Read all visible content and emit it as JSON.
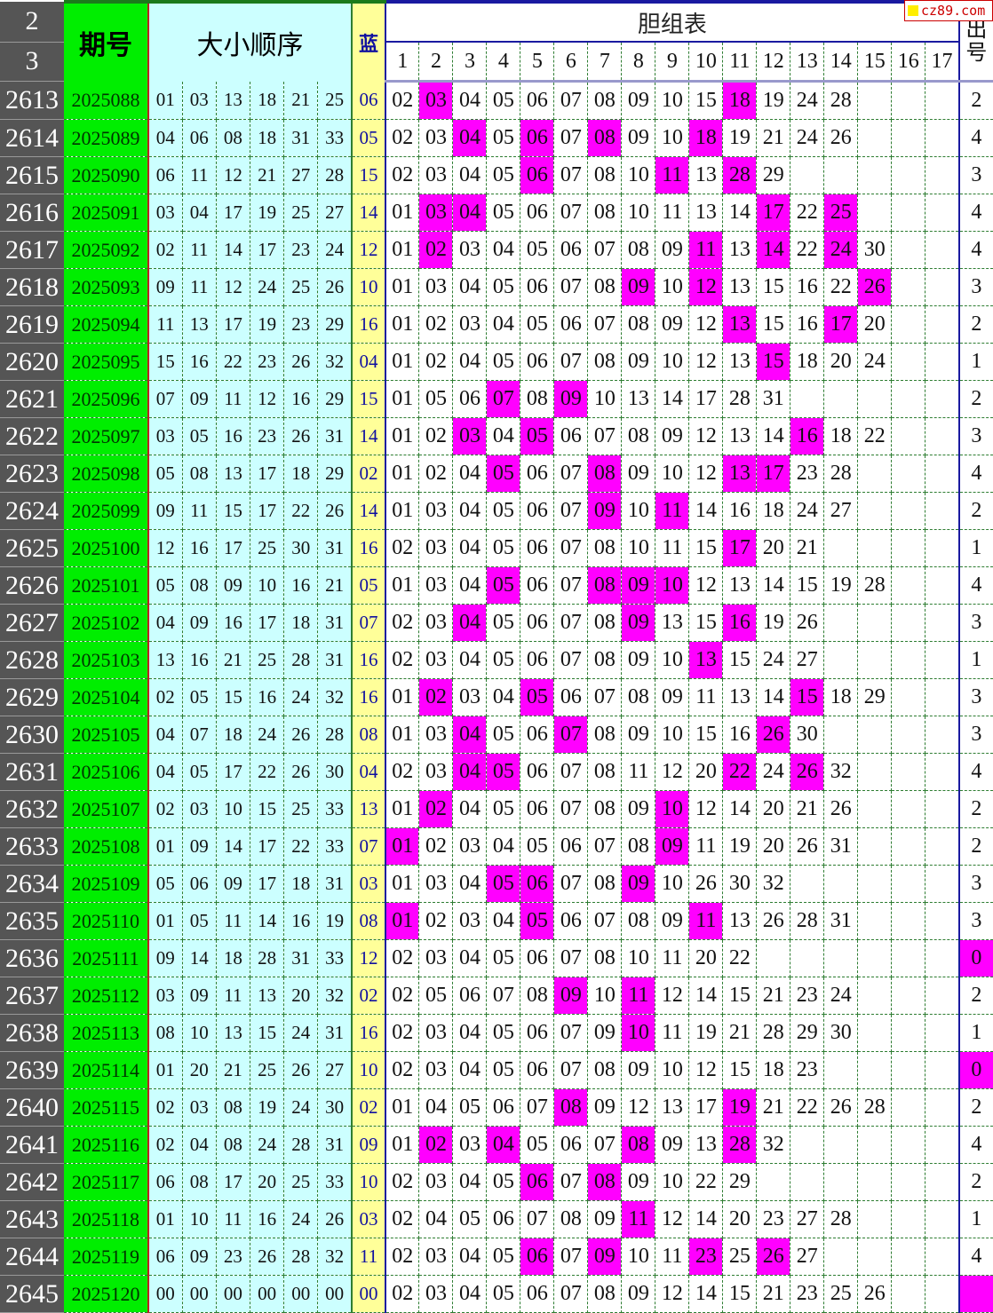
{
  "header": {
    "row_numbers": [
      "2",
      "3"
    ],
    "period_label": "期号",
    "red_label": "大小顺序",
    "blue_label": "蓝",
    "danzu_label": "胆组表",
    "danzu_columns": [
      "1",
      "2",
      "3",
      "4",
      "5",
      "6",
      "7",
      "8",
      "9",
      "10",
      "11",
      "12",
      "13",
      "14",
      "15",
      "16",
      "17"
    ],
    "count_label": "出号"
  },
  "watermark": "cz89.com",
  "colors": {
    "hit": "#ff00ff",
    "period_bg": "#00ee00",
    "red_bg": "#ccffff",
    "blue_bg": "#ffff99",
    "row_number_bg": "#555555"
  },
  "rows": [
    {
      "n": "2613",
      "period": "2025088",
      "red": [
        "01",
        "03",
        "13",
        "18",
        "21",
        "25"
      ],
      "blue": "06",
      "danzu": [
        "02",
        "03",
        "04",
        "05",
        "06",
        "07",
        "08",
        "09",
        "10",
        "15",
        "18",
        "19",
        "24",
        "28"
      ],
      "count": "2"
    },
    {
      "n": "2614",
      "period": "2025089",
      "red": [
        "04",
        "06",
        "08",
        "18",
        "31",
        "33"
      ],
      "blue": "05",
      "danzu": [
        "02",
        "03",
        "04",
        "05",
        "06",
        "07",
        "08",
        "09",
        "10",
        "18",
        "19",
        "21",
        "24",
        "26"
      ],
      "count": "4"
    },
    {
      "n": "2615",
      "period": "2025090",
      "red": [
        "06",
        "11",
        "12",
        "21",
        "27",
        "28"
      ],
      "blue": "15",
      "danzu": [
        "02",
        "03",
        "04",
        "05",
        "06",
        "07",
        "08",
        "10",
        "11",
        "13",
        "28",
        "29"
      ],
      "count": "3"
    },
    {
      "n": "2616",
      "period": "2025091",
      "red": [
        "03",
        "04",
        "17",
        "19",
        "25",
        "27"
      ],
      "blue": "14",
      "danzu": [
        "01",
        "03",
        "04",
        "05",
        "06",
        "07",
        "08",
        "10",
        "11",
        "13",
        "14",
        "17",
        "22",
        "25"
      ],
      "count": "4"
    },
    {
      "n": "2617",
      "period": "2025092",
      "red": [
        "02",
        "11",
        "14",
        "17",
        "23",
        "24"
      ],
      "blue": "12",
      "danzu": [
        "01",
        "02",
        "03",
        "04",
        "05",
        "06",
        "07",
        "08",
        "09",
        "11",
        "13",
        "14",
        "22",
        "24",
        "30"
      ],
      "count": "4"
    },
    {
      "n": "2618",
      "period": "2025093",
      "red": [
        "09",
        "11",
        "12",
        "24",
        "25",
        "26"
      ],
      "blue": "10",
      "danzu": [
        "01",
        "03",
        "04",
        "05",
        "06",
        "07",
        "08",
        "09",
        "10",
        "12",
        "13",
        "15",
        "16",
        "22",
        "26"
      ],
      "count": "3"
    },
    {
      "n": "2619",
      "period": "2025094",
      "red": [
        "11",
        "13",
        "17",
        "19",
        "23",
        "29"
      ],
      "blue": "16",
      "danzu": [
        "01",
        "02",
        "03",
        "04",
        "05",
        "06",
        "07",
        "08",
        "09",
        "12",
        "13",
        "15",
        "16",
        "17",
        "20"
      ],
      "count": "2"
    },
    {
      "n": "2620",
      "period": "2025095",
      "red": [
        "15",
        "16",
        "22",
        "23",
        "26",
        "32"
      ],
      "blue": "04",
      "danzu": [
        "01",
        "02",
        "04",
        "05",
        "06",
        "07",
        "08",
        "09",
        "10",
        "12",
        "13",
        "15",
        "18",
        "20",
        "24"
      ],
      "count": "1"
    },
    {
      "n": "2621",
      "period": "2025096",
      "red": [
        "07",
        "09",
        "11",
        "12",
        "16",
        "29"
      ],
      "blue": "15",
      "danzu": [
        "01",
        "05",
        "06",
        "07",
        "08",
        "09",
        "10",
        "13",
        "14",
        "17",
        "28",
        "31"
      ],
      "count": "2"
    },
    {
      "n": "2622",
      "period": "2025097",
      "red": [
        "03",
        "05",
        "16",
        "23",
        "26",
        "31"
      ],
      "blue": "14",
      "danzu": [
        "01",
        "02",
        "03",
        "04",
        "05",
        "06",
        "07",
        "08",
        "09",
        "12",
        "13",
        "14",
        "16",
        "18",
        "22"
      ],
      "count": "3"
    },
    {
      "n": "2623",
      "period": "2025098",
      "red": [
        "05",
        "08",
        "13",
        "17",
        "18",
        "29"
      ],
      "blue": "02",
      "danzu": [
        "01",
        "02",
        "04",
        "05",
        "06",
        "07",
        "08",
        "09",
        "10",
        "12",
        "13",
        "17",
        "23",
        "28"
      ],
      "count": "4"
    },
    {
      "n": "2624",
      "period": "2025099",
      "red": [
        "09",
        "11",
        "15",
        "17",
        "22",
        "26"
      ],
      "blue": "14",
      "danzu": [
        "01",
        "03",
        "04",
        "05",
        "06",
        "07",
        "09",
        "10",
        "11",
        "14",
        "16",
        "18",
        "24",
        "27"
      ],
      "count": "2"
    },
    {
      "n": "2625",
      "period": "2025100",
      "red": [
        "12",
        "16",
        "17",
        "25",
        "30",
        "31"
      ],
      "blue": "16",
      "danzu": [
        "02",
        "03",
        "04",
        "05",
        "06",
        "07",
        "08",
        "10",
        "11",
        "15",
        "17",
        "20",
        "21"
      ],
      "count": "1"
    },
    {
      "n": "2626",
      "period": "2025101",
      "red": [
        "05",
        "08",
        "09",
        "10",
        "16",
        "21"
      ],
      "blue": "05",
      "danzu": [
        "01",
        "03",
        "04",
        "05",
        "06",
        "07",
        "08",
        "09",
        "10",
        "12",
        "13",
        "14",
        "15",
        "19",
        "28"
      ],
      "count": "4"
    },
    {
      "n": "2627",
      "period": "2025102",
      "red": [
        "04",
        "09",
        "16",
        "17",
        "18",
        "31"
      ],
      "blue": "07",
      "danzu": [
        "02",
        "03",
        "04",
        "05",
        "06",
        "07",
        "08",
        "09",
        "13",
        "15",
        "16",
        "19",
        "26"
      ],
      "count": "3"
    },
    {
      "n": "2628",
      "period": "2025103",
      "red": [
        "13",
        "16",
        "21",
        "25",
        "28",
        "31"
      ],
      "blue": "16",
      "danzu": [
        "02",
        "03",
        "04",
        "05",
        "06",
        "07",
        "08",
        "09",
        "10",
        "13",
        "15",
        "24",
        "27"
      ],
      "count": "1"
    },
    {
      "n": "2629",
      "period": "2025104",
      "red": [
        "02",
        "05",
        "15",
        "16",
        "24",
        "32"
      ],
      "blue": "16",
      "danzu": [
        "01",
        "02",
        "03",
        "04",
        "05",
        "06",
        "07",
        "08",
        "09",
        "11",
        "13",
        "14",
        "15",
        "18",
        "29"
      ],
      "count": "3"
    },
    {
      "n": "2630",
      "period": "2025105",
      "red": [
        "04",
        "07",
        "18",
        "24",
        "26",
        "28"
      ],
      "blue": "08",
      "danzu": [
        "01",
        "03",
        "04",
        "05",
        "06",
        "07",
        "08",
        "09",
        "10",
        "15",
        "16",
        "26",
        "30"
      ],
      "count": "3"
    },
    {
      "n": "2631",
      "period": "2025106",
      "red": [
        "04",
        "05",
        "17",
        "22",
        "26",
        "30"
      ],
      "blue": "04",
      "danzu": [
        "02",
        "03",
        "04",
        "05",
        "06",
        "07",
        "08",
        "11",
        "12",
        "20",
        "22",
        "24",
        "26",
        "32"
      ],
      "count": "4"
    },
    {
      "n": "2632",
      "period": "2025107",
      "red": [
        "02",
        "03",
        "10",
        "15",
        "25",
        "33"
      ],
      "blue": "13",
      "danzu": [
        "01",
        "02",
        "04",
        "05",
        "06",
        "07",
        "08",
        "09",
        "10",
        "12",
        "14",
        "20",
        "21",
        "26"
      ],
      "count": "2"
    },
    {
      "n": "2633",
      "period": "2025108",
      "red": [
        "01",
        "09",
        "14",
        "17",
        "22",
        "33"
      ],
      "blue": "07",
      "danzu": [
        "01",
        "02",
        "03",
        "04",
        "05",
        "06",
        "07",
        "08",
        "09",
        "11",
        "19",
        "20",
        "26",
        "31"
      ],
      "count": "2"
    },
    {
      "n": "2634",
      "period": "2025109",
      "red": [
        "05",
        "06",
        "09",
        "17",
        "18",
        "31"
      ],
      "blue": "03",
      "danzu": [
        "01",
        "03",
        "04",
        "05",
        "06",
        "07",
        "08",
        "09",
        "10",
        "26",
        "30",
        "32"
      ],
      "count": "3"
    },
    {
      "n": "2635",
      "period": "2025110",
      "red": [
        "01",
        "05",
        "11",
        "14",
        "16",
        "19"
      ],
      "blue": "08",
      "danzu": [
        "01",
        "02",
        "03",
        "04",
        "05",
        "06",
        "07",
        "08",
        "09",
        "11",
        "13",
        "26",
        "28",
        "31"
      ],
      "count": "3"
    },
    {
      "n": "2636",
      "period": "2025111",
      "red": [
        "09",
        "14",
        "18",
        "28",
        "31",
        "33"
      ],
      "blue": "12",
      "danzu": [
        "02",
        "03",
        "04",
        "05",
        "06",
        "07",
        "08",
        "10",
        "11",
        "20",
        "22"
      ],
      "count": "0"
    },
    {
      "n": "2637",
      "period": "2025112",
      "red": [
        "03",
        "09",
        "11",
        "13",
        "20",
        "32"
      ],
      "blue": "02",
      "danzu": [
        "02",
        "05",
        "06",
        "07",
        "08",
        "09",
        "10",
        "11",
        "12",
        "14",
        "15",
        "21",
        "23",
        "24"
      ],
      "count": "2"
    },
    {
      "n": "2638",
      "period": "2025113",
      "red": [
        "08",
        "10",
        "13",
        "15",
        "24",
        "31"
      ],
      "blue": "16",
      "danzu": [
        "02",
        "03",
        "04",
        "05",
        "06",
        "07",
        "09",
        "10",
        "11",
        "19",
        "21",
        "28",
        "29",
        "30"
      ],
      "count": "1"
    },
    {
      "n": "2639",
      "period": "2025114",
      "red": [
        "01",
        "20",
        "21",
        "25",
        "26",
        "27"
      ],
      "blue": "10",
      "danzu": [
        "02",
        "03",
        "04",
        "05",
        "06",
        "07",
        "08",
        "09",
        "10",
        "12",
        "15",
        "18",
        "23"
      ],
      "count": "0"
    },
    {
      "n": "2640",
      "period": "2025115",
      "red": [
        "02",
        "03",
        "08",
        "19",
        "24",
        "30"
      ],
      "blue": "02",
      "danzu": [
        "01",
        "04",
        "05",
        "06",
        "07",
        "08",
        "09",
        "12",
        "13",
        "17",
        "19",
        "21",
        "22",
        "26",
        "28"
      ],
      "count": "2"
    },
    {
      "n": "2641",
      "period": "2025116",
      "red": [
        "02",
        "04",
        "08",
        "24",
        "28",
        "31"
      ],
      "blue": "09",
      "danzu": [
        "01",
        "02",
        "03",
        "04",
        "05",
        "06",
        "07",
        "08",
        "09",
        "13",
        "28",
        "32"
      ],
      "count": "4"
    },
    {
      "n": "2642",
      "period": "2025117",
      "red": [
        "06",
        "08",
        "17",
        "20",
        "25",
        "33"
      ],
      "blue": "10",
      "danzu": [
        "02",
        "03",
        "04",
        "05",
        "06",
        "07",
        "08",
        "09",
        "10",
        "22",
        "29"
      ],
      "count": "2"
    },
    {
      "n": "2643",
      "period": "2025118",
      "red": [
        "01",
        "10",
        "11",
        "16",
        "24",
        "26"
      ],
      "blue": "03",
      "danzu": [
        "02",
        "04",
        "05",
        "06",
        "07",
        "08",
        "09",
        "11",
        "12",
        "14",
        "20",
        "23",
        "27",
        "28"
      ],
      "count": "1"
    },
    {
      "n": "2644",
      "period": "2025119",
      "red": [
        "06",
        "09",
        "23",
        "26",
        "28",
        "32"
      ],
      "blue": "11",
      "danzu": [
        "02",
        "03",
        "04",
        "05",
        "06",
        "07",
        "09",
        "10",
        "11",
        "23",
        "25",
        "26",
        "27"
      ],
      "count": "4"
    },
    {
      "n": "2645",
      "period": "2025120",
      "red": [
        "00",
        "00",
        "00",
        "00",
        "00",
        "00"
      ],
      "blue": "00",
      "danzu": [
        "02",
        "03",
        "04",
        "05",
        "06",
        "07",
        "08",
        "09",
        "12",
        "14",
        "15",
        "21",
        "23",
        "25",
        "26"
      ],
      "count": ""
    }
  ]
}
